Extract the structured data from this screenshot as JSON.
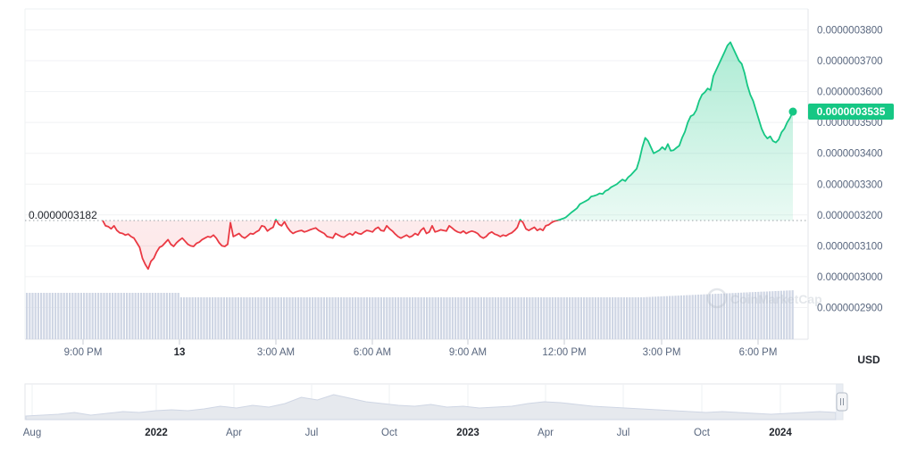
{
  "chart_data": {
    "type": "line",
    "currency_label": "USD",
    "reference_label": "0.0000003182",
    "reference_value": 3.182e-07,
    "current_label": "0.0000003535",
    "current_value": 3.535e-07,
    "y_ticks": [
      "0.0000003800",
      "0.0000003700",
      "0.0000003600",
      "0.0000003500",
      "0.0000003400",
      "0.0000003300",
      "0.0000003200",
      "0.0000003100",
      "0.0000003000",
      "0.0000002900"
    ],
    "x_ticks": [
      {
        "label": "9:00 PM",
        "bold": false
      },
      {
        "label": "13",
        "bold": true
      },
      {
        "label": "3:00 AM",
        "bold": false
      },
      {
        "label": "6:00 AM",
        "bold": false
      },
      {
        "label": "9:00 AM",
        "bold": false
      },
      {
        "label": "12:00 PM",
        "bold": false
      },
      {
        "label": "3:00 PM",
        "bold": false
      },
      {
        "label": "6:00 PM",
        "bold": false
      }
    ],
    "watermark": "CoinMarketCap",
    "series": [
      {
        "values": [
          3182,
          3165,
          3162,
          3155,
          3165,
          3150,
          3142,
          3140,
          3135,
          3138,
          3130,
          3125,
          3110,
          3095,
          3060,
          3040,
          3025,
          3050,
          3060,
          3080,
          3095,
          3100,
          3110,
          3120,
          3105,
          3098,
          3110,
          3118,
          3125,
          3115,
          3105,
          3100,
          3098,
          3108,
          3112,
          3120,
          3125,
          3130,
          3128,
          3135,
          3125,
          3110,
          3100,
          3098,
          3105,
          3175,
          3130,
          3135,
          3140,
          3130,
          3125,
          3132,
          3140,
          3138,
          3145,
          3150,
          3165,
          3162,
          3148,
          3155,
          3160,
          3185,
          3170,
          3165,
          3178,
          3160,
          3148,
          3140,
          3145,
          3148,
          3150,
          3145,
          3148,
          3152,
          3155,
          3158,
          3150,
          3145,
          3140,
          3130,
          3128,
          3125,
          3140,
          3135,
          3130,
          3128,
          3135,
          3140,
          3135,
          3145,
          3140,
          3138,
          3145,
          3150,
          3148,
          3145,
          3155,
          3160,
          3150,
          3148,
          3165,
          3155,
          3148,
          3138,
          3130,
          3125,
          3130,
          3135,
          3128,
          3132,
          3140,
          3135,
          3150,
          3158,
          3140,
          3145,
          3165,
          3145,
          3148,
          3152,
          3150,
          3148,
          3165,
          3158,
          3150,
          3145,
          3142,
          3148,
          3140,
          3145,
          3148,
          3145,
          3140,
          3130,
          3125,
          3130,
          3140,
          3145,
          3138,
          3135,
          3130,
          3135,
          3132,
          3138,
          3142,
          3150,
          3160,
          3185,
          3175,
          3155,
          3150,
          3155,
          3160,
          3150,
          3155,
          3150,
          3165,
          3168,
          3175,
          3180,
          3182,
          3185,
          3188,
          3192,
          3200,
          3208,
          3215,
          3222,
          3235,
          3240,
          3245,
          3250,
          3260,
          3262,
          3265,
          3270,
          3268,
          3278,
          3282,
          3290,
          3295,
          3300,
          3308,
          3315,
          3310,
          3322,
          3330,
          3340,
          3350,
          3380,
          3420,
          3450,
          3440,
          3420,
          3400,
          3405,
          3410,
          3420,
          3412,
          3430,
          3408,
          3410,
          3418,
          3425,
          3450,
          3470,
          3500,
          3520,
          3525,
          3540,
          3570,
          3590,
          3598,
          3610,
          3605,
          3650,
          3670,
          3690,
          3710,
          3730,
          3750,
          3760,
          3740,
          3720,
          3700,
          3690,
          3660,
          3620,
          3590,
          3570,
          3540,
          3510,
          3480,
          3460,
          3448,
          3455,
          3440,
          3435,
          3445,
          3468,
          3480,
          3500,
          3515,
          3535
        ]
      }
    ],
    "y_range_scaled": [
      2840,
      3870
    ],
    "scale_note_units": 1e-10,
    "navigator": {
      "labels": [
        {
          "label": "Aug",
          "bold": false
        },
        {
          "label": "2022",
          "bold": true
        },
        {
          "label": "Apr",
          "bold": false
        },
        {
          "label": "Jul",
          "bold": false
        },
        {
          "label": "Oct",
          "bold": false
        },
        {
          "label": "2023",
          "bold": true
        },
        {
          "label": "Apr",
          "bold": false
        },
        {
          "label": "Jul",
          "bold": false
        },
        {
          "label": "Oct",
          "bold": false
        },
        {
          "label": "2024",
          "bold": true
        }
      ],
      "handle_icon": "pause-bars-icon"
    },
    "colors": {
      "up": "#16c784",
      "down": "#ea3943",
      "reference_line": "#9aa0a6",
      "volume": "#cfd6e4"
    }
  }
}
